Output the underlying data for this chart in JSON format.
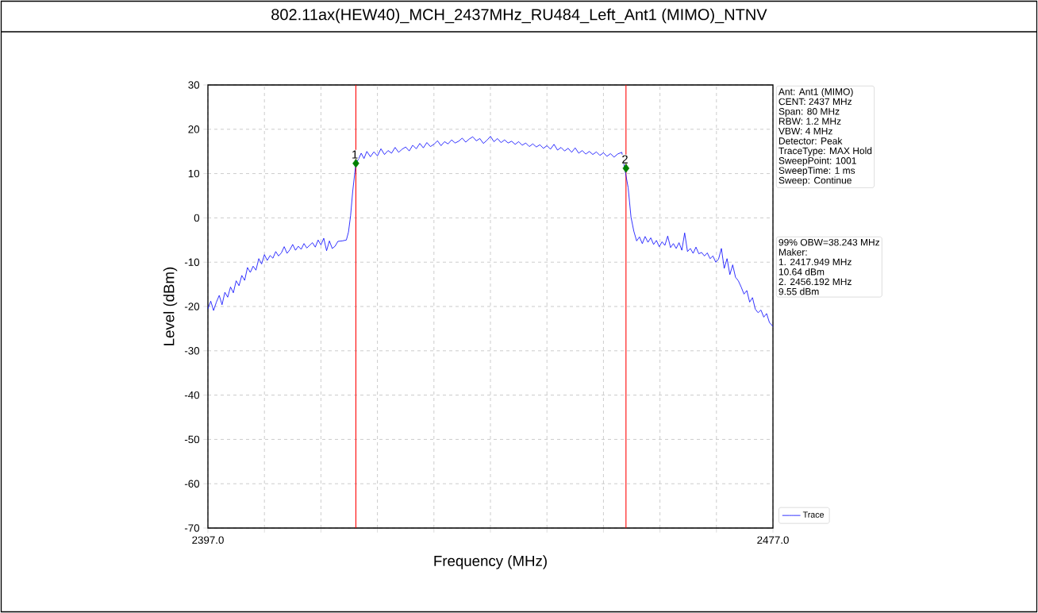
{
  "chart_data": {
    "type": "line",
    "title": "802.11ax(HEW40)_MCH_2437MHz_RU484_Left_Ant1 (MIMO)_NTNV",
    "xlabel": "Frequency (MHz)",
    "ylabel": "Level (dBm)",
    "xlim": [
      2397,
      2477
    ],
    "ylim": [
      -70,
      30
    ],
    "xticks": [
      {
        "value": 2397,
        "label": "2397.0"
      },
      {
        "value": 2405,
        "label": null
      },
      {
        "value": 2413,
        "label": null
      },
      {
        "value": 2421,
        "label": null
      },
      {
        "value": 2429,
        "label": null
      },
      {
        "value": 2437,
        "label": null
      },
      {
        "value": 2445,
        "label": null
      },
      {
        "value": 2453,
        "label": null
      },
      {
        "value": 2461,
        "label": null
      },
      {
        "value": 2469,
        "label": null
      },
      {
        "value": 2477,
        "label": "2477.0"
      }
    ],
    "yticks": [
      -70,
      -60,
      -50,
      -40,
      -30,
      -20,
      -10,
      0,
      10,
      20,
      30
    ],
    "grid": true,
    "legend": "bottom right",
    "series": [
      {
        "name": "Trace",
        "color": "#0000ff",
        "x": [
          2397,
          2397.4,
          2397.8,
          2398.2,
          2398.6,
          2399,
          2399.4,
          2399.8,
          2400.2,
          2400.6,
          2401,
          2401.4,
          2401.8,
          2402.2,
          2402.6,
          2403,
          2403.4,
          2403.8,
          2404.2,
          2404.6,
          2405,
          2405.4,
          2405.8,
          2406.2,
          2406.6,
          2407,
          2407.4,
          2407.8,
          2408.2,
          2408.6,
          2409,
          2409.4,
          2409.8,
          2410.2,
          2410.6,
          2411,
          2411.4,
          2411.8,
          2412.2,
          2412.6,
          2413,
          2413.4,
          2413.8,
          2414.2,
          2414.6,
          2415,
          2415.4,
          2416,
          2416.6,
          2416.9,
          2417.2,
          2417.5,
          2417.949,
          2418.3,
          2418.7,
          2419.1,
          2419.5,
          2420,
          2420.5,
          2421,
          2421.5,
          2422,
          2422.5,
          2423,
          2423.5,
          2424,
          2424.5,
          2425,
          2425.5,
          2426,
          2426.5,
          2427,
          2427.5,
          2428,
          2428.5,
          2429,
          2429.5,
          2430,
          2430.5,
          2431,
          2431.5,
          2432,
          2432.5,
          2433,
          2433.5,
          2434,
          2434.5,
          2435,
          2435.5,
          2436,
          2436.5,
          2437,
          2437.5,
          2438,
          2438.5,
          2439,
          2439.5,
          2440,
          2440.5,
          2441,
          2441.5,
          2442,
          2442.5,
          2443,
          2443.5,
          2444,
          2444.5,
          2445,
          2445.5,
          2446,
          2446.5,
          2447,
          2447.5,
          2448,
          2448.5,
          2449,
          2449.5,
          2450,
          2450.5,
          2451,
          2451.5,
          2452,
          2452.5,
          2453,
          2453.5,
          2454,
          2454.5,
          2455,
          2455.6,
          2456.192,
          2456.5,
          2456.9,
          2457.3,
          2457.7,
          2458.1,
          2458.5,
          2458.9,
          2459.3,
          2459.7,
          2460.1,
          2460.5,
          2460.9,
          2461.3,
          2461.7,
          2462.1,
          2462.5,
          2462.9,
          2463.3,
          2463.7,
          2464.1,
          2464.5,
          2464.9,
          2465.3,
          2465.7,
          2466.1,
          2466.5,
          2466.9,
          2467.3,
          2467.7,
          2468.1,
          2468.5,
          2468.9,
          2469.3,
          2469.7,
          2470.1,
          2470.5,
          2470.9,
          2471.3,
          2471.7,
          2472.1,
          2472.5,
          2472.9,
          2473.3,
          2473.7,
          2474.1,
          2474.5,
          2474.9,
          2475.3,
          2475.7,
          2476.1,
          2476.5,
          2477
        ],
        "values": [
          -20.5,
          -18.8,
          -20.9,
          -19.0,
          -17.5,
          -19.6,
          -16.8,
          -17.9,
          -15.6,
          -16.9,
          -14.2,
          -15.3,
          -13.0,
          -14.1,
          -11.2,
          -12.3,
          -10.9,
          -11.8,
          -9.2,
          -10.4,
          -8.3,
          -9.6,
          -8.5,
          -9.1,
          -7.6,
          -8.6,
          -7.9,
          -6.5,
          -8.0,
          -7.2,
          -6.0,
          -7.3,
          -6.4,
          -7.1,
          -5.8,
          -6.8,
          -6.2,
          -5.6,
          -6.6,
          -5.0,
          -6.1,
          -4.6,
          -7.4,
          -5.2,
          -6.9,
          -6.4,
          -5.3,
          -5.2,
          -5.0,
          -3.2,
          0.5,
          6.0,
          12.3,
          13.2,
          14.6,
          13.4,
          15.0,
          13.8,
          14.9,
          14.0,
          15.6,
          14.3,
          15.2,
          14.6,
          15.9,
          14.8,
          15.5,
          16.0,
          15.1,
          16.4,
          15.6,
          16.8,
          15.8,
          17.0,
          16.1,
          16.6,
          17.4,
          16.3,
          17.2,
          16.7,
          17.6,
          16.9,
          17.3,
          18.0,
          17.1,
          17.8,
          18.3,
          17.4,
          17.9,
          16.8,
          17.5,
          18.4,
          17.2,
          17.9,
          17.0,
          17.6,
          16.9,
          17.3,
          16.6,
          17.2,
          16.4,
          16.9,
          16.1,
          16.7,
          16.0,
          16.5,
          15.7,
          16.3,
          15.5,
          16.6,
          15.3,
          15.9,
          15.1,
          15.7,
          14.8,
          15.8,
          14.6,
          15.2,
          14.4,
          15.0,
          14.3,
          14.9,
          14.1,
          14.7,
          13.9,
          14.5,
          13.7,
          14.4,
          14.8,
          null,
          6.8,
          0.2,
          -3.0,
          -5.2,
          -4.3,
          -5.8,
          -4.2,
          -5.5,
          -4.5,
          -6.0,
          -5.1,
          -6.5,
          -5.4,
          -6.2,
          -4.1,
          -6.7,
          -5.8,
          -6.9,
          -5.6,
          -7.3,
          -3.4,
          -7.6,
          -6.9,
          -8.0,
          -6.6,
          -8.1,
          -7.8,
          -8.6,
          -7.9,
          -9.2,
          -8.6,
          -10.0,
          -9.3,
          -6.9,
          -11.4,
          -9.2,
          -12.8,
          -10.6,
          -13.4,
          -14.2,
          -15.6,
          -17.2,
          -16.4,
          -19.0,
          -18.0,
          -20.6,
          -21.4,
          -20.8,
          -22.4,
          -21.6,
          -23.6,
          -24.5
        ]
      },
      {
        "color": "#008000",
        "type": "scatter",
        "marker": "diamond",
        "x": [
          2417.949,
          2456.192
        ],
        "values": [
          12.3,
          11.2
        ]
      }
    ],
    "ref_lines": [
      {
        "axis": "x",
        "value": 2417.949,
        "color": "#ff0000"
      },
      {
        "axis": "x",
        "value": 2456.192,
        "color": "#ff0000"
      }
    ],
    "annotations": [
      {
        "text": "1",
        "x": 2417.949,
        "y": 12.3
      },
      {
        "text": "2",
        "x": 2456.192,
        "y": 11.2
      },
      "Ant: Ant1 (MIMO)",
      "CENT: 2437 MHz",
      "Span: 80 MHz",
      "RBW: 1.2 MHz",
      "VBW: 4 MHz",
      "Detector: Peak",
      "TraceType: MAX Hold",
      "SweepPoint: 1001",
      "SweepTime: 1 ms",
      "Sweep: Continue",
      "99% OBW=38.243 MHz",
      "Maker:",
      "1. 2417.949 MHz",
      "10.64 dBm",
      "2. 2456.192 MHz",
      "9.55 dBm"
    ]
  }
}
